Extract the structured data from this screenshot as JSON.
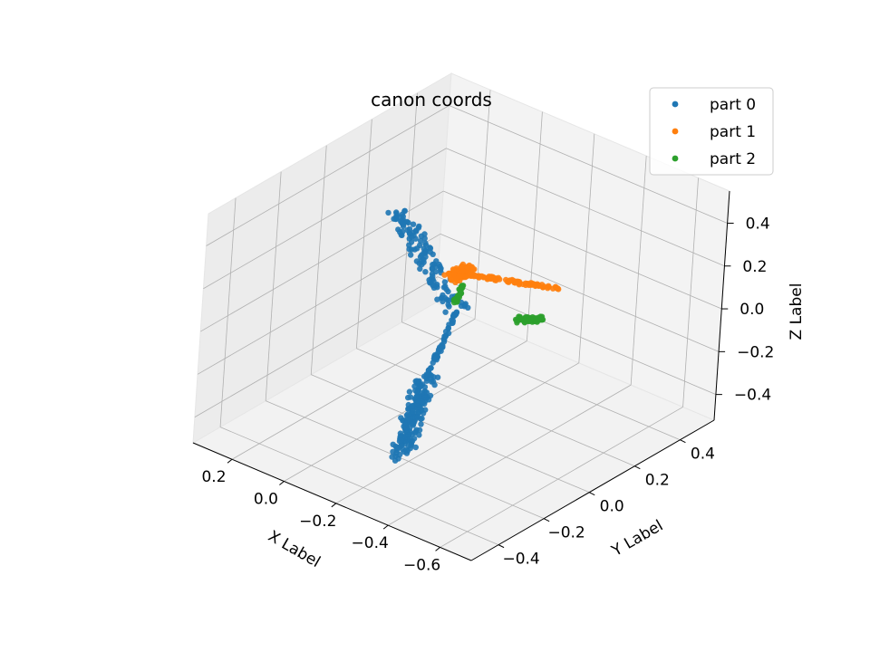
{
  "chart_data": {
    "type": "scatter",
    "projection": "3d",
    "title": "canon coords",
    "xlabel": "X Label",
    "ylabel": "Y Label",
    "zlabel": "Z Label",
    "xlim": [
      -0.72,
      0.35
    ],
    "ylim": [
      -0.52,
      0.55
    ],
    "zlim": [
      -0.52,
      0.55
    ],
    "xticks": [
      -0.6,
      -0.4,
      -0.2,
      0.0,
      0.2
    ],
    "xticklabels": [
      "−0.6",
      "−0.4",
      "−0.2",
      "0.0",
      "0.2"
    ],
    "yticks": [
      -0.4,
      -0.2,
      0.0,
      0.2,
      0.4
    ],
    "yticklabels": [
      "−0.4",
      "−0.2",
      "0.0",
      "0.2",
      "0.4"
    ],
    "zticks": [
      -0.4,
      -0.2,
      0.0,
      0.2,
      0.4
    ],
    "zticklabels": [
      "−0.4",
      "−0.2",
      "0.0",
      "0.2",
      "0.4"
    ],
    "grid": true,
    "legend_position": "upper right",
    "series": [
      {
        "name": "part 0",
        "color": "#1f77b4",
        "segments": [
          {
            "from": [
              0.3,
              0.28,
              0.1
            ],
            "to": [
              0.0,
              0.22,
              -0.18
            ],
            "width": 0.055,
            "count": 130
          },
          {
            "from": [
              0.0,
              0.22,
              -0.18
            ],
            "to": [
              -0.08,
              0.0,
              -0.32
            ],
            "width": 0.012,
            "count": 60
          },
          {
            "from": [
              -0.08,
              0.0,
              -0.32
            ],
            "to": [
              -0.25,
              -0.3,
              -0.4
            ],
            "width": 0.06,
            "count": 200
          }
        ]
      },
      {
        "name": "part 1",
        "color": "#ff7f0e",
        "segments": [
          {
            "from": [
              -0.6,
              -0.05,
              0.4
            ],
            "to": [
              -0.15,
              0.02,
              0.2
            ],
            "width": 0.012,
            "count": 90
          },
          {
            "from": [
              -0.15,
              0.02,
              0.2
            ],
            "to": [
              -0.05,
              0.18,
              0.05
            ],
            "width": 0.055,
            "count": 150
          }
        ]
      },
      {
        "name": "part 2",
        "color": "#2ca02c",
        "segments": [
          {
            "from": [
              -0.6,
              -0.12,
              0.3
            ],
            "to": [
              -0.45,
              -0.05,
              0.18
            ],
            "width": 0.02,
            "count": 80
          },
          {
            "from": [
              -0.05,
              0.18,
              0.0
            ],
            "to": [
              -0.04,
              0.16,
              -0.08
            ],
            "width": 0.012,
            "count": 30
          }
        ]
      }
    ]
  }
}
